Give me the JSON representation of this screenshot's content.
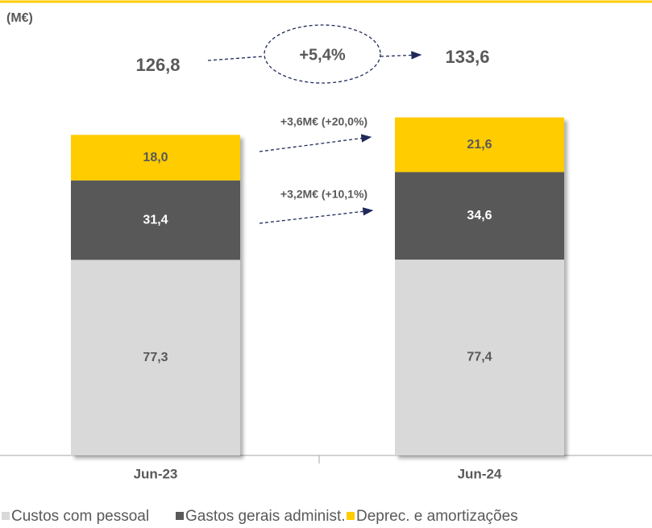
{
  "chart_data": {
    "type": "stacked_bar",
    "unit_label": "(M€)",
    "categories": [
      "Jun-23",
      "Jun-24"
    ],
    "series": [
      {
        "name": "Custos com pessoal",
        "color": "#d9d9d9",
        "values": [
          77.3,
          77.4
        ],
        "value_labels": [
          "77,3",
          "77,4"
        ],
        "label_color": "#595959"
      },
      {
        "name": "Gastos gerais administ.",
        "color": "#595959",
        "values": [
          31.4,
          34.6
        ],
        "value_labels": [
          "31,4",
          "34,6"
        ],
        "label_color": "#ffffff"
      },
      {
        "name": "Deprec. e amortizações",
        "color": "#ffcc00",
        "values": [
          18.0,
          21.6
        ],
        "value_labels": [
          "18,0",
          "21,6"
        ],
        "label_color": "#595959"
      }
    ],
    "ylim": [
      0,
      180
    ],
    "annotations": [
      "126,8",
      "+5,4%",
      "133,6",
      "+3,6M€ (+20,0%)",
      "+3,2M€ (+10,1%)"
    ]
  }
}
